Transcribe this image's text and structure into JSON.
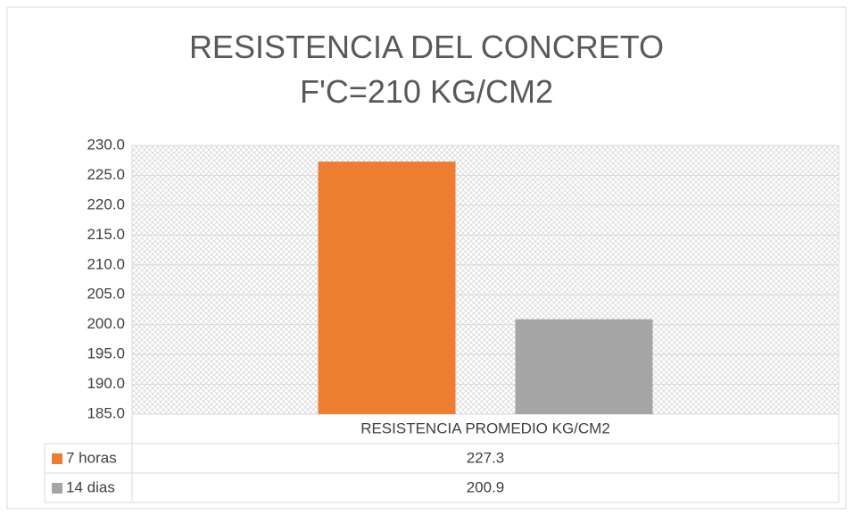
{
  "chart_data": {
    "type": "bar",
    "title": "RESISTENCIA DEL CONCRETO F'C=210 KG/CM2",
    "categories": [
      "RESISTENCIA PROMEDIO KG/CM2"
    ],
    "series": [
      {
        "name": "7 horas",
        "color": "#ed7d31",
        "values": [
          227.3
        ]
      },
      {
        "name": "14 dias",
        "color": "#a5a5a5",
        "values": [
          200.9
        ]
      }
    ],
    "ylim": [
      185,
      230
    ],
    "yticks": [
      {
        "value": 185,
        "label": "185.0"
      },
      {
        "value": 190,
        "label": "190.0"
      },
      {
        "value": 195,
        "label": "195.0"
      },
      {
        "value": 200,
        "label": "200.0"
      },
      {
        "value": 205,
        "label": "205.0"
      },
      {
        "value": 210,
        "label": "210.0"
      },
      {
        "value": 215,
        "label": "215.0"
      },
      {
        "value": 220,
        "label": "220.0"
      },
      {
        "value": 225,
        "label": "225.0"
      },
      {
        "value": 230,
        "label": "230.0"
      }
    ],
    "grid": true
  }
}
